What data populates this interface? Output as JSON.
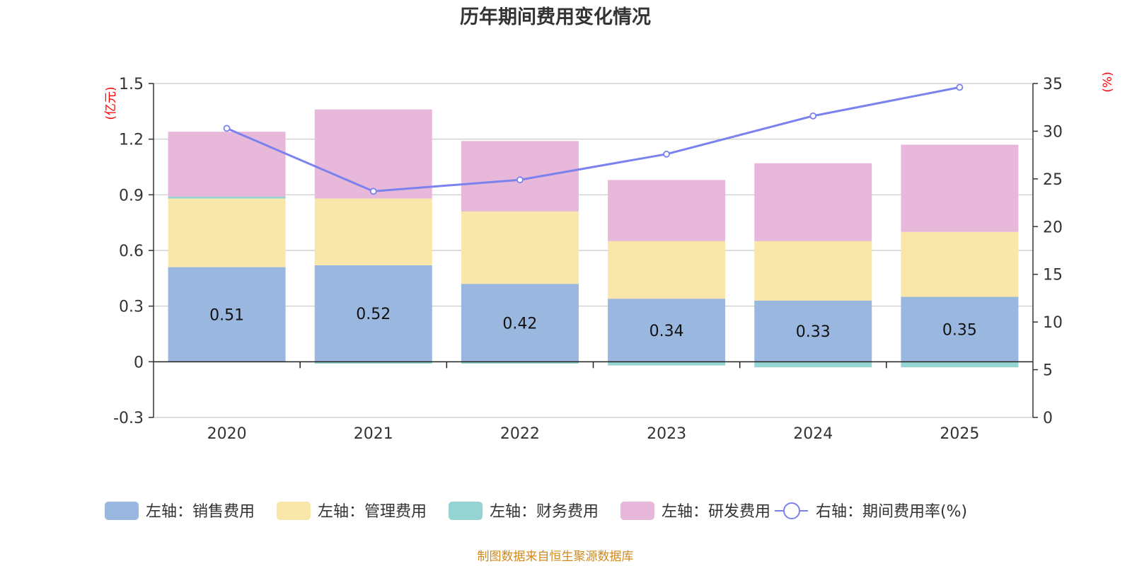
{
  "chart_data": {
    "type": "bar",
    "title": "历年期间费用变化情况",
    "categories": [
      "2020",
      "2021",
      "2022",
      "2023",
      "2024",
      "2025"
    ],
    "left_axis": {
      "unit": "(亿元)",
      "ylim": [
        -0.3,
        1.5
      ],
      "ticks": [
        "1.5",
        "1.2",
        "0.9",
        "0.6",
        "0.3",
        "0",
        "-0.3"
      ],
      "tick_values": [
        1.5,
        1.2,
        0.9,
        0.6,
        0.3,
        0,
        -0.3
      ]
    },
    "right_axis": {
      "unit": "(%)",
      "ylim": [
        0,
        35
      ],
      "ticks": [
        "35",
        "30",
        "25",
        "20",
        "15",
        "10",
        "5",
        "0"
      ],
      "tick_values": [
        35,
        30,
        25,
        20,
        15,
        10,
        5,
        0
      ]
    },
    "series": [
      {
        "name": "左轴：销售费用",
        "axis": "left",
        "kind": "bar",
        "color": "#9ab7e0",
        "values": [
          0.51,
          0.52,
          0.42,
          0.34,
          0.33,
          0.35
        ],
        "labels": [
          "0.51",
          "0.52",
          "0.42",
          "0.34",
          "0.33",
          "0.35"
        ]
      },
      {
        "name": "左轴：管理费用",
        "axis": "left",
        "kind": "bar",
        "color": "#f8e7a8",
        "values": [
          0.37,
          0.36,
          0.39,
          0.31,
          0.32,
          0.35
        ]
      },
      {
        "name": "左轴：财务费用",
        "axis": "left",
        "kind": "bar",
        "color": "#96d4d4",
        "values": [
          0.01,
          -0.01,
          -0.01,
          -0.02,
          -0.03,
          -0.03
        ]
      },
      {
        "name": "左轴：研发费用",
        "axis": "left",
        "kind": "bar",
        "color": "#e8b8da",
        "values": [
          0.35,
          0.48,
          0.38,
          0.33,
          0.42,
          0.47
        ]
      },
      {
        "name": "右轴：期间费用率(%)",
        "axis": "right",
        "kind": "line",
        "color": "#7b82ee",
        "values": [
          30.3,
          23.7,
          24.9,
          27.6,
          31.6,
          34.6
        ]
      }
    ],
    "legend_position": "bottom",
    "grid": true,
    "source": "制图数据来自恒生聚源数据库"
  }
}
